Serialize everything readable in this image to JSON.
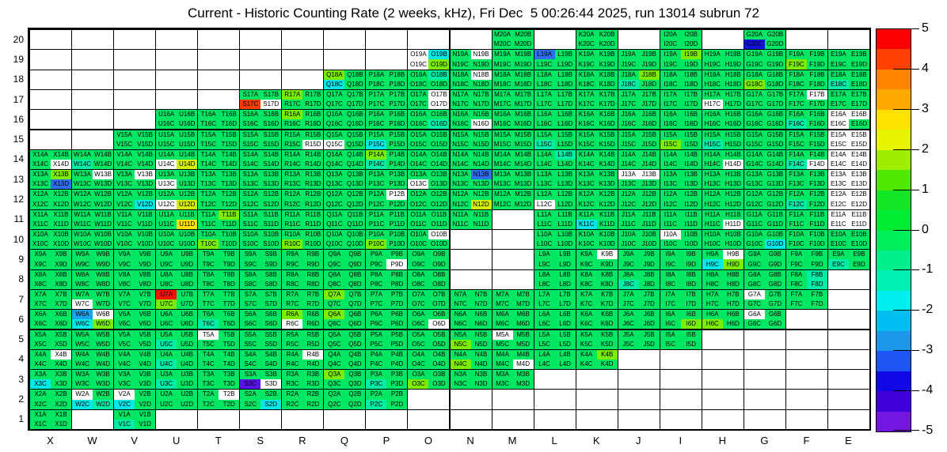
{
  "chart_data": {
    "type": "heatmap",
    "title": "Current - Historic Counting Rate (2 weeks, kHz), Fri Dec  5 00:26:44 2025, run 13014 subrun 72",
    "columns": [
      "X",
      "W",
      "V",
      "U",
      "T",
      "S",
      "R",
      "Q",
      "P",
      "O",
      "N",
      "M",
      "L",
      "K",
      "J",
      "I",
      "H",
      "G",
      "F",
      "E"
    ],
    "rows": [
      20,
      19,
      18,
      17,
      16,
      15,
      14,
      13,
      12,
      11,
      10,
      9,
      8,
      7,
      6,
      5,
      4,
      3,
      2,
      1
    ],
    "sublabels": [
      "A",
      "B",
      "C",
      "D"
    ],
    "legend_position": "right",
    "grid": "on",
    "palette": {
      "g": "#00e763",
      "G": "#7bed00",
      "Y": "#d4f000",
      "y": "#ffe400",
      "t": "#00eda5",
      "c": "#00e8e8",
      "a": "#1ba3f0",
      "b": "#2e6ef2",
      "B": "#1313e0",
      "P": "#5a13e6",
      "r": "#ff0f00",
      "R": "#f93e00",
      "w": "#ffffff"
    },
    "colorbar": {
      "max": 5,
      "min": -5,
      "tick_labels": [
        "5",
        "4",
        "3",
        "2",
        "1",
        "0",
        "-1",
        "-2",
        "-3",
        "-4",
        "-5"
      ],
      "segments_top_to_bottom": [
        "#fb0000",
        "#ff4000",
        "#ff8400",
        "#ffa900",
        "#ffe300",
        "#e8f500",
        "#9fee00",
        "#4fe800",
        "#12e626",
        "#00ec33",
        "#00ee5c",
        "#00ee8c",
        "#00efb2",
        "#00f0f0",
        "#00bff0",
        "#1e97ea",
        "#1f55f2",
        "#1108e8",
        "#3d00d9",
        "#7316e2"
      ]
    },
    "cells": {
      "20": [
        "",
        "",
        "",
        "",
        "",
        "",
        "",
        "",
        "",
        "",
        "",
        "gggg",
        "",
        "gggg",
        "",
        "gggg",
        "",
        "ggBg",
        "",
        ""
      ],
      "19": [
        "",
        "",
        "",
        "",
        "",
        "",
        "",
        "",
        "",
        "wcwG",
        "gwgg",
        "gggg",
        "bggg",
        "gggg",
        "gggg",
        "gGgg",
        "gggg",
        "gggg",
        "ggGg",
        "gggg"
      ],
      "18": [
        "",
        "",
        "",
        "",
        "",
        "",
        "",
        "Ggcg",
        "gggg",
        "gtgg",
        "gwgg",
        "gggg",
        "gggg",
        "gggg",
        "gGtg",
        "gggg",
        "gggg",
        "ggGg",
        "gggg",
        "ggtg"
      ],
      "17": [
        "",
        "",
        "",
        "",
        "",
        "ggRw",
        "Gggg",
        "gggg",
        "gggg",
        "gwgw",
        "gggg",
        "gggg",
        "gggg",
        "gggg",
        "gggg",
        "gggg",
        "ggwg",
        "gggg",
        "gwgg",
        "gggg"
      ],
      "16": [
        "",
        "",
        "",
        "gggg",
        "gggg",
        "gggg",
        "Gggg",
        "gggg",
        "gggg",
        "gggt",
        "gggw",
        "gggg",
        "gggg",
        "gggg",
        "gggg",
        "gggg",
        "gggg",
        "gggg",
        "ggtg",
        "wwwg"
      ],
      "15": [
        "",
        "",
        "gggg",
        "gggg",
        "gggg",
        "gggg",
        "gggw",
        "ggwg",
        "ggcg",
        "gggg",
        "gggg",
        "gggg",
        "ggtg",
        "gggg",
        "gggg",
        "ggGg",
        "ggtg",
        "gggg",
        "gggg",
        "wwww"
      ],
      "14": [
        "gggw",
        "ggtg",
        "gggg",
        "ggwY",
        "gggg",
        "gggg",
        "gggg",
        "gggg",
        "Ggtg",
        "gggg",
        "gggg",
        "gggg",
        "gtgg",
        "gggg",
        "gggg",
        "gggg",
        "gggw",
        "gggg",
        "ggtw",
        "wwww"
      ],
      "13": [
        "gGgb",
        "gwgg",
        "gwgg",
        "ggwg",
        "gggg",
        "gggg",
        "gggg",
        "gggg",
        "gggg",
        "ggwg",
        "gbgg",
        "gggg",
        "gggg",
        "gggg",
        "wwgg",
        "gggg",
        "gggg",
        "gggg",
        "gggg",
        "wwww"
      ],
      "12": [
        "gggg",
        "gggg",
        "gggc",
        "ggwY",
        "gggg",
        "gggg",
        "gggg",
        "gggg",
        "gwgg",
        "gggg",
        "gggY",
        "gggg",
        "ggwg",
        "gggg",
        "gggg",
        "gggg",
        "gggg",
        "gggg",
        "ggtg",
        "wwww"
      ],
      "11": [
        "gggg",
        "gggg",
        "gggg",
        "gggy",
        "gGgg",
        "gggg",
        "gggg",
        "gggg",
        "gggg",
        "gggg",
        "gggg",
        "",
        "gggg",
        "ggcg",
        "gggg",
        "gggg",
        "gggw",
        "gggg",
        "gggg",
        "wwww"
      ],
      "10": [
        "gggg",
        "gggg",
        "gggg",
        "gggg",
        "ggGg",
        "gggg",
        "ggGg",
        "gggg",
        "ggGg",
        "gwgg",
        "",
        "",
        "gggg",
        "gggg",
        "gggg",
        "wggg",
        "gggg",
        "gggc",
        "gggg",
        "gggg"
      ],
      "9": [
        "gggg",
        "gggg",
        "gggg",
        "gggg",
        "gggg",
        "gggg",
        "gggg",
        "gggg",
        "gggw",
        "gggg",
        "",
        "",
        "gggg",
        "gwgg",
        "gggg",
        "gggg",
        "gwcG",
        "gggg",
        "gggg",
        "ggtg"
      ],
      "8": [
        "gggg",
        "gggg",
        "gggg",
        "gggg",
        "gggg",
        "gggg",
        "gggg",
        "gggg",
        "gggg",
        "gggg",
        "",
        "",
        "gggg",
        "gggg",
        "ggtg",
        "gggg",
        "gggg",
        "gggg",
        "gtgt",
        ""
      ],
      "7": [
        "gggg",
        "ggwg",
        "gggg",
        "rgGg",
        "gggg",
        "gggg",
        "gggg",
        "Gggg",
        "gggg",
        "gggg",
        "gggg",
        "gggg",
        "gggg",
        "gggg",
        "gggg",
        "gggg",
        "gggg",
        "wggg",
        "gggg",
        ""
      ],
      "6": [
        "gggg",
        "awcG",
        "gggg",
        "gggg",
        "ggtg",
        "gggg",
        "Ggwg",
        "Gggg",
        "gggg",
        "gggw",
        "gggg",
        "gggg",
        "gggg",
        "gggg",
        "gggg",
        "gggG",
        "ggGg",
        "wggg",
        "",
        ""
      ],
      "5": [
        "gggg",
        "gggg",
        "gggg",
        "ggtg",
        "wggg",
        "gggg",
        "gggg",
        "gggg",
        "gggg",
        "gggg",
        "ggGg",
        "wggg",
        "gggg",
        "gggg",
        "gggg",
        "gggg",
        "",
        "",
        "",
        ""
      ],
      "4": [
        "gwgg",
        "gggg",
        "gggg",
        "ggtg",
        "gggg",
        "gggg",
        "gwgg",
        "gggg",
        "gggg",
        "gggg",
        "ggGg",
        "gggw",
        "gggg",
        "gGgg",
        "",
        "",
        "",
        "",
        "",
        ""
      ],
      "3": [
        "ggcg",
        "gggg",
        "gggg",
        "ggtg",
        "gggg",
        "ggPw",
        "gggg",
        "Gggg",
        "ggtg",
        "ggGg",
        "gggg",
        "gggg",
        "",
        "",
        "",
        "",
        "",
        "",
        "",
        ""
      ],
      "2": [
        "gggg",
        "wgct",
        "wgcg",
        "gggg",
        "gwgg",
        "gggc",
        "gggg",
        "gggg",
        "ggtg",
        "",
        "",
        "",
        "",
        "",
        "",
        "",
        "",
        "",
        "",
        ""
      ],
      "1": [
        "gggg",
        "",
        "ggtg",
        "",
        "",
        "",
        "",
        "",
        "",
        "",
        "",
        "",
        "",
        "",
        "",
        "",
        "",
        "",
        "",
        ""
      ]
    }
  }
}
